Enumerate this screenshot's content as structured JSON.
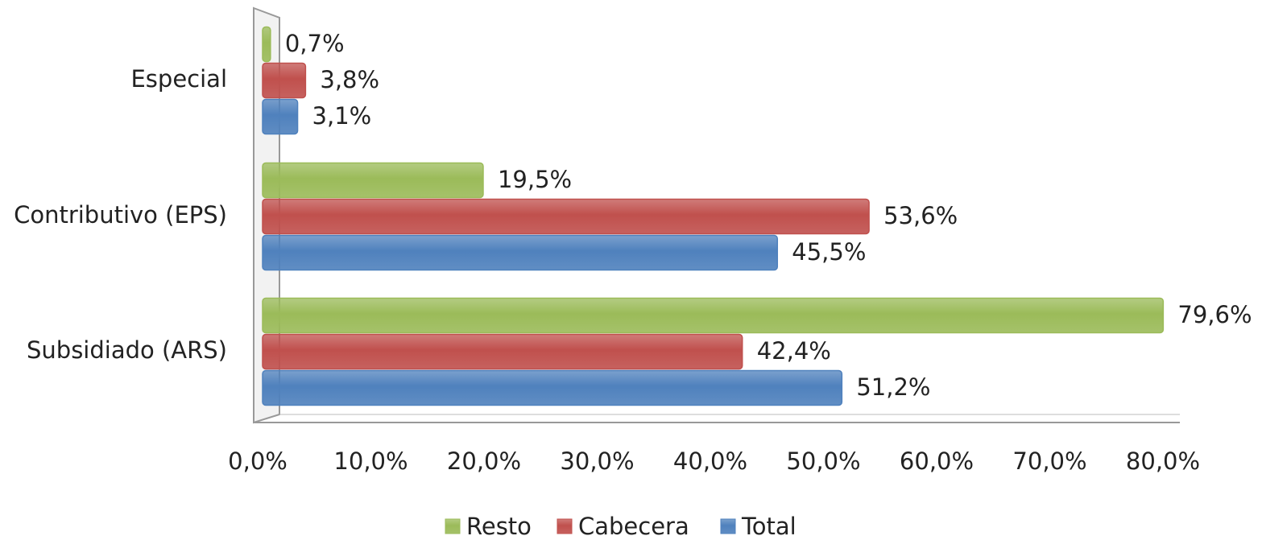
{
  "chart_data": {
    "type": "hbar",
    "categories": [
      "Especial",
      "Contributivo (EPS)",
      "Subsidiado (ARS)"
    ],
    "series": [
      {
        "name": "Resto",
        "color": "#9bbb59",
        "values": [
          0.7,
          19.5,
          79.6
        ],
        "value_labels": [
          "0,7%",
          "19,5%",
          "79,6%"
        ]
      },
      {
        "name": "Cabecera",
        "color": "#c0504d",
        "values": [
          3.8,
          53.6,
          42.4
        ],
        "value_labels": [
          "3,8%",
          "53,6%",
          "42,4%"
        ]
      },
      {
        "name": "Total",
        "color": "#4f81bd",
        "values": [
          3.1,
          45.5,
          51.2
        ],
        "value_labels": [
          "3,1%",
          "45,5%",
          "51,2%"
        ]
      }
    ],
    "xlim": [
      0,
      80
    ],
    "xticks": [
      {
        "value": 0,
        "label": "0,0%"
      },
      {
        "value": 10,
        "label": "10,0%"
      },
      {
        "value": 20,
        "label": "20,0%"
      },
      {
        "value": 30,
        "label": "30,0%"
      },
      {
        "value": 40,
        "label": "40,0%"
      },
      {
        "value": 50,
        "label": "50,0%"
      },
      {
        "value": 60,
        "label": "60,0%"
      },
      {
        "value": 70,
        "label": "70,0%"
      },
      {
        "value": 80,
        "label": "80,0%"
      }
    ],
    "legend": "bottom"
  }
}
